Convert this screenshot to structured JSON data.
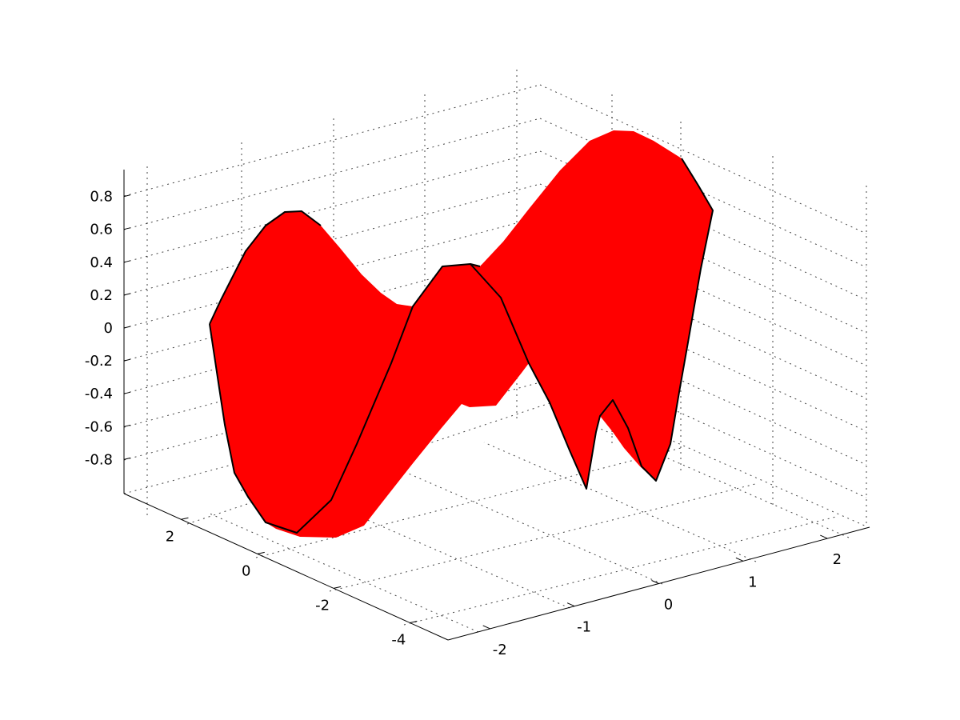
{
  "chart_data": {
    "type": "surface3d",
    "title": "",
    "xlabel": "",
    "ylabel": "",
    "zlabel": "",
    "x_ticks": [
      "-2",
      "-1",
      "0",
      "1",
      "2"
    ],
    "y_ticks": [
      "-4",
      "-2",
      "0",
      "2"
    ],
    "z_ticks": [
      "-0.8",
      "-0.6",
      "-0.4",
      "-0.2",
      "0",
      "0.2",
      "0.4",
      "0.6",
      "0.8"
    ],
    "xlim": [
      -2.5,
      2.5
    ],
    "ylim": [
      -5,
      3.5
    ],
    "zlim": [
      -1,
      1
    ],
    "grid": true,
    "face_color": "#ff0000",
    "edge_color": "#000000",
    "surface_description": "Surface whose cross-section in z is a full sine period sweeping along x while the profile shifts with y",
    "samples": {
      "front_edge_y": -5,
      "x": [
        -2,
        -1.5,
        -1,
        -0.5,
        0,
        0.5,
        1,
        1.5,
        2
      ],
      "z": [
        0.3,
        0.8,
        0.55,
        -0.5,
        -0.95,
        -0.45,
        0.5,
        0.95,
        0.7
      ]
    }
  }
}
